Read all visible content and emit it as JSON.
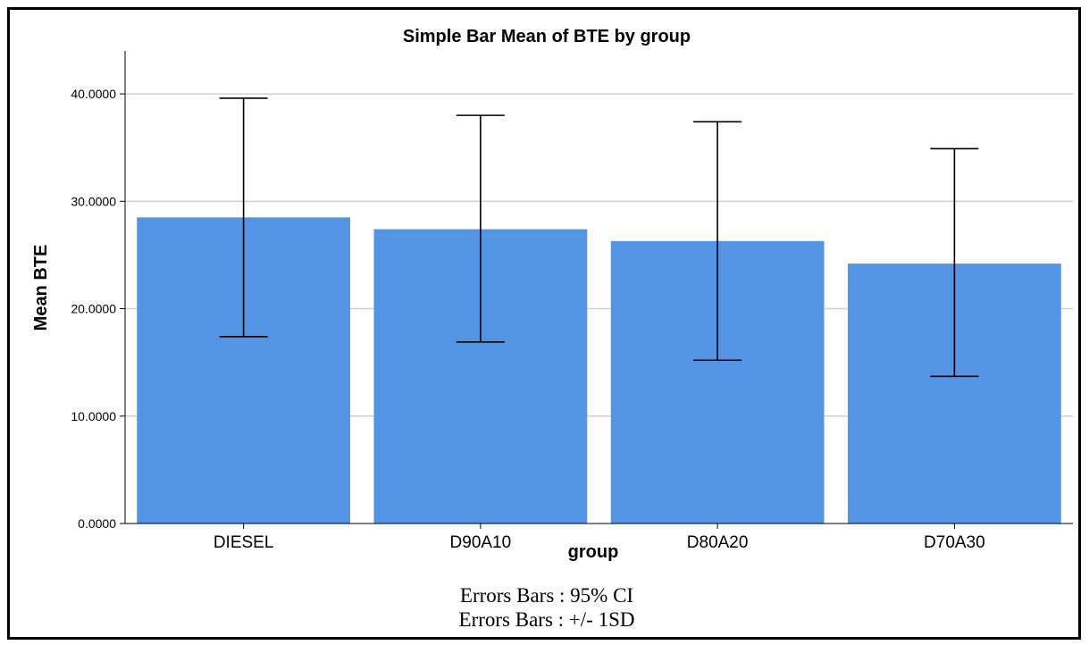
{
  "chart_data": {
    "type": "bar",
    "title": "Simple Bar Mean of BTE by group",
    "xlabel": "group",
    "ylabel": "Mean BTE",
    "ylim": [
      0,
      44
    ],
    "yticks": [
      0,
      10,
      20,
      30,
      40
    ],
    "ytick_labels": [
      "0.0000",
      "10.0000",
      "20.0000",
      "30.0000",
      "40.0000"
    ],
    "categories": [
      "DIESEL",
      "D90A10",
      "D80A20",
      "D70A30"
    ],
    "values": [
      28.5,
      27.4,
      26.3,
      24.2
    ],
    "error_low": [
      17.4,
      16.9,
      15.2,
      13.7
    ],
    "error_high": [
      39.6,
      38.0,
      37.4,
      34.9
    ],
    "grid": true,
    "bar_color": "#5494e5",
    "grid_color": "#cfcfcf",
    "notes": [
      "Errors Bars : 95% CI",
      "Errors Bars : +/- 1SD"
    ]
  }
}
